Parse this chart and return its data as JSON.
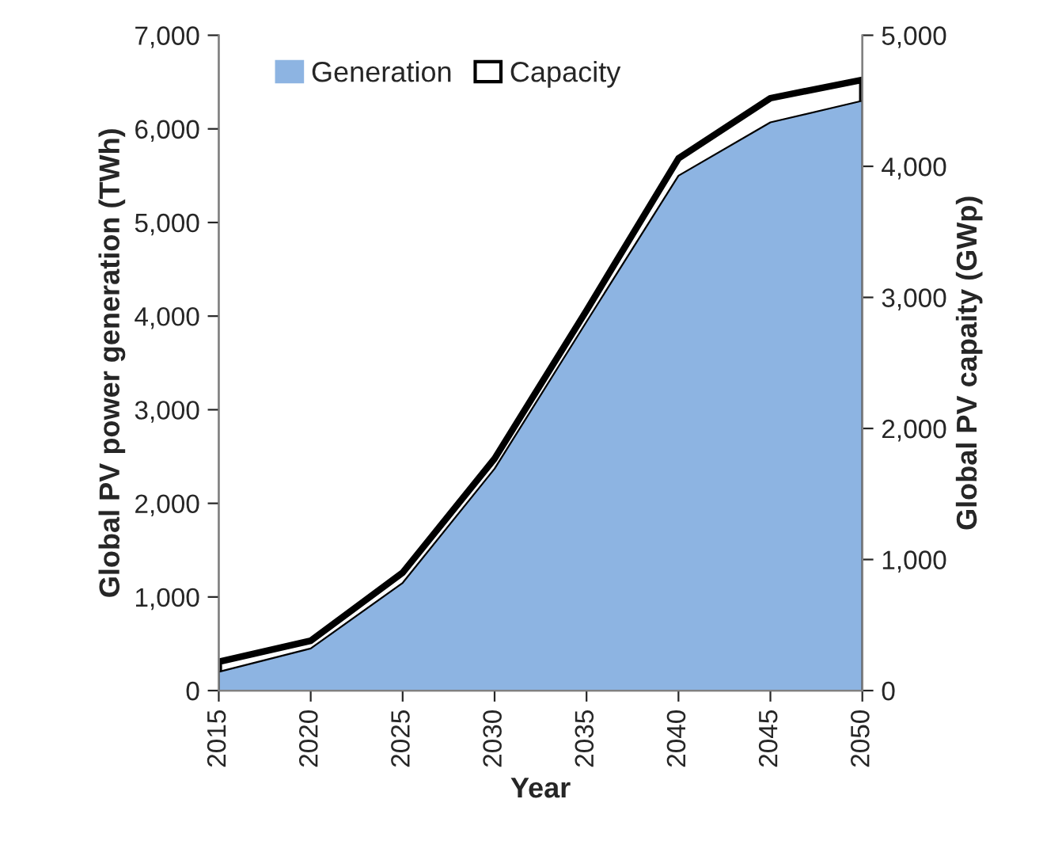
{
  "chart_data": {
    "type": "area",
    "xlabel": "Year",
    "ylabel": "Global PV power generation (TWh)",
    "y2label": "Global PV capaity (GWp)",
    "x": [
      2015,
      2020,
      2025,
      2030,
      2035,
      2040,
      2045,
      2050
    ],
    "xlim": [
      2015,
      2050
    ],
    "xticks": [
      2015,
      2020,
      2025,
      2030,
      2035,
      2040,
      2045,
      2050
    ],
    "ylim": [
      0,
      7000
    ],
    "yticks": [
      0,
      {
        "value": 1000,
        "label": "1,000"
      },
      {
        "value": 2000,
        "label": "2,000"
      },
      {
        "value": 3000,
        "label": "3,000"
      },
      {
        "value": 4000,
        "label": "4,000"
      },
      {
        "value": 5000,
        "label": "5,000"
      },
      {
        "value": 6000,
        "label": "6,000"
      },
      {
        "value": 7000,
        "label": "7,000"
      }
    ],
    "y2lim": [
      0,
      5000
    ],
    "y2ticks": [
      0,
      {
        "value": 1000,
        "label": "1,000"
      },
      {
        "value": 2000,
        "label": "2,000"
      },
      {
        "value": 3000,
        "label": "3,000"
      },
      {
        "value": 4000,
        "label": "4,000"
      },
      {
        "value": 5000,
        "label": "5,000"
      }
    ],
    "series": [
      {
        "name": "Generation",
        "color": "#8db4e2",
        "values": [
          200,
          450,
          1150,
          2370,
          3940,
          5500,
          6070,
          6300
        ]
      },
      {
        "name": "Capacity",
        "color": "#ffffff",
        "axis": "y2",
        "values": [
          220,
          380,
          900,
          1770,
          2900,
          4060,
          4520,
          4660
        ]
      }
    ],
    "legend": "top left",
    "grid": false
  }
}
